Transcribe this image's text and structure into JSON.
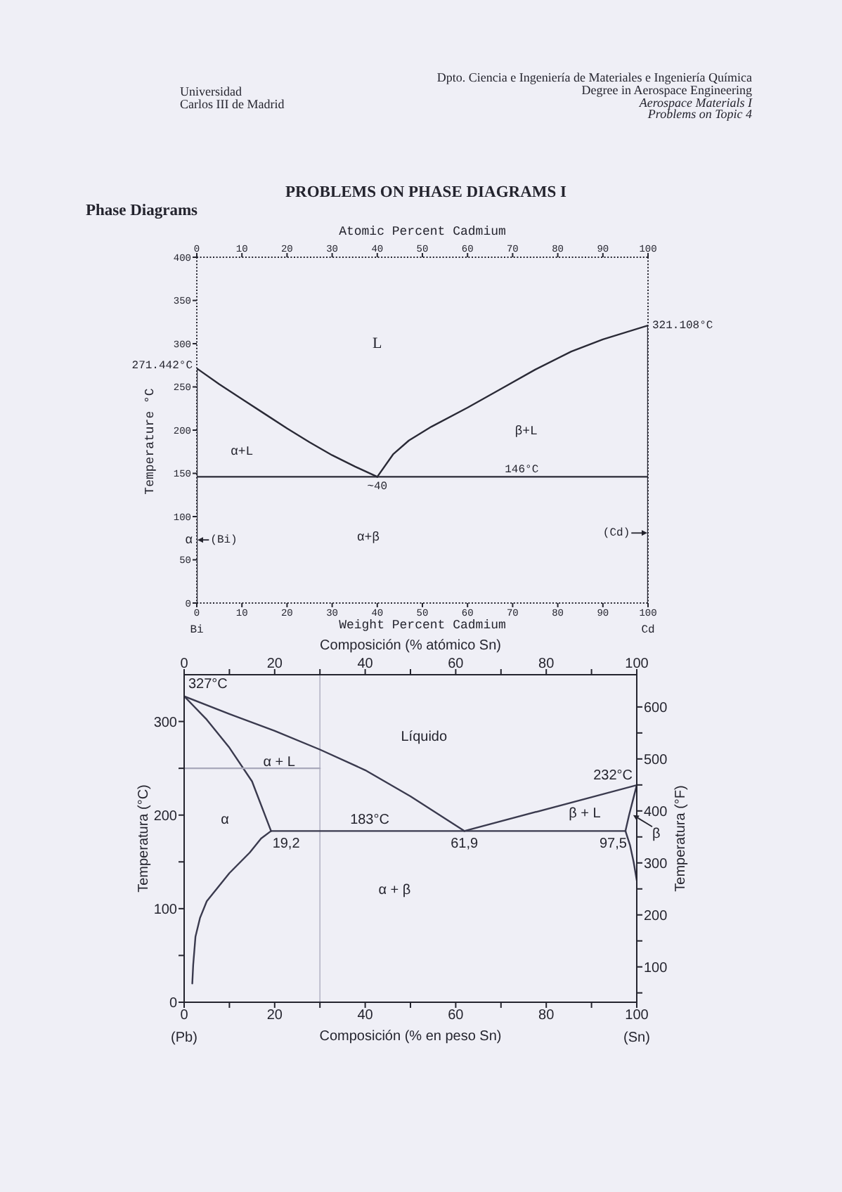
{
  "chart_data": [
    {
      "type": "line",
      "title": "PROBLEMS ON PHASE DIAGRAMS I",
      "subtitle": "Phase Diagrams",
      "xlabel": "Weight Percent Cadmium",
      "x2label": "Atomic Percent Cadmium",
      "ylabel": "Temperature °C",
      "xlim": [
        0,
        100
      ],
      "xticks": [
        0,
        10,
        20,
        30,
        40,
        50,
        60,
        70,
        80,
        90,
        100
      ],
      "x2lim": [
        0,
        100
      ],
      "x2ticks": [
        0,
        10,
        20,
        30,
        40,
        50,
        60,
        70,
        80,
        90,
        100
      ],
      "ylim": [
        0,
        400
      ],
      "yticks": [
        0,
        50,
        100,
        150,
        200,
        250,
        300,
        350,
        400
      ],
      "series": [
        {
          "color": "#2a2a36",
          "x": [
            0,
            0,
            5,
            10,
            15,
            20,
            25,
            30,
            35,
            40
          ],
          "values": [
            0,
            271.442,
            253,
            236,
            219,
            202,
            186,
            171,
            158,
            146
          ]
        },
        {
          "color": "#2a2a36",
          "x": [
            40,
            43.5,
            47,
            52,
            60,
            67.5,
            75,
            83,
            90,
            100,
            100
          ],
          "values": [
            146,
            172,
            188,
            204,
            226,
            248,
            270,
            291,
            305,
            321.108,
            0
          ]
        },
        {
          "color": "#2a2a36",
          "x": [
            0,
            100
          ],
          "values": [
            146,
            146
          ]
        }
      ],
      "annotations": [
        "Universidad",
        "Carlos III de Madrid",
        "Dpto. Ciencia e Ingeniería de Materiales e Ingeniería Química",
        "Degree in Aerospace Engineering",
        "Aerospace Materials I",
        "Problems on Topic 4",
        "L",
        {
          "text": "271.442°C",
          "x": 0,
          "y": 271.442
        },
        {
          "text": "321.108°C",
          "x": 100,
          "y": 321.108
        },
        {
          "text": "146°C",
          "x": 72,
          "y": 146
        },
        {
          "text": "~40",
          "x": 40,
          "y": 146
        },
        "α+L",
        "β+L",
        "α+β",
        "α",
        "(Bi)",
        "(Cd)",
        "Bi",
        "Cd"
      ]
    },
    {
      "type": "line",
      "xlabel": "Composición (% en peso Sn)",
      "x2label": "Composición (% atómico Sn)",
      "ylabel": "Temperatura (°C)",
      "y2label": "Temperatura (°F)",
      "xlim": [
        0,
        100
      ],
      "xticks": [
        0,
        {
          "value": 10,
          "label": null
        },
        20,
        {
          "value": 30,
          "label": null
        },
        40,
        {
          "value": 50,
          "label": null
        },
        60,
        {
          "value": 70,
          "label": null
        },
        80,
        {
          "value": 90,
          "label": null
        },
        100
      ],
      "x2lim": [
        0,
        100
      ],
      "x2ticks": [
        0,
        {
          "value": 10,
          "label": null
        },
        20,
        {
          "value": 30,
          "label": null
        },
        40,
        {
          "value": 50,
          "label": null
        },
        60,
        {
          "value": 70,
          "label": null
        },
        80,
        {
          "value": 90,
          "label": null
        },
        100
      ],
      "ylim": [
        0,
        350
      ],
      "yticks": [
        0,
        {
          "value": 50,
          "label": null
        },
        100,
        {
          "value": 150,
          "label": null
        },
        200,
        {
          "value": 250,
          "label": null
        },
        300
      ],
      "y2lim": [
        32,
        662
      ],
      "y2ticks": [
        {
          "value": 50,
          "label": null
        },
        100,
        {
          "value": 150,
          "label": null
        },
        200,
        {
          "value": 250,
          "label": null
        },
        300,
        {
          "value": 350,
          "label": null
        },
        400,
        {
          "value": 450,
          "label": null
        },
        500,
        {
          "value": 550,
          "label": null
        },
        600
      ],
      "series": [
        {
          "color": "#3a3a4e",
          "x": [
            0,
            10,
            20,
            30,
            40,
            50,
            61.9
          ],
          "values": [
            327,
            308,
            290,
            270,
            248,
            220,
            183
          ]
        },
        {
          "color": "#3a3a4e",
          "x": [
            0,
            5,
            10,
            15,
            19.2
          ],
          "values": [
            327,
            302,
            272,
            236,
            183
          ]
        },
        {
          "color": "#3a3a4e",
          "x": [
            19.2,
            17,
            14.5,
            10,
            7,
            5,
            3.5,
            2.5,
            2,
            1.8
          ],
          "values": [
            183,
            175,
            160,
            138,
            120,
            108,
            90,
            70,
            40,
            20
          ]
        },
        {
          "color": "#3a3a4e",
          "x": [
            19.2,
            97.5
          ],
          "values": [
            183,
            183
          ]
        },
        {
          "color": "#3a3a4e",
          "x": [
            61.9,
            100
          ],
          "values": [
            183,
            232
          ]
        },
        {
          "color": "#3a3a4e",
          "x": [
            97.5,
            98.3,
            99.2,
            100
          ],
          "values": [
            183,
            200,
            217,
            232
          ]
        },
        {
          "color": "#3a3a4e",
          "x": [
            97.5,
            98.5,
            99.3,
            100
          ],
          "values": [
            183,
            168,
            150,
            130
          ]
        },
        {
          "color": "#a9a9bb",
          "x": [
            0,
            30
          ],
          "values": [
            250,
            250
          ]
        }
      ],
      "ref_lines": [
        {
          "axis": "x",
          "value": 30,
          "color": "#b4b4c6"
        }
      ],
      "annotations": [
        {
          "text": "327°C",
          "x": 0,
          "y": 327
        },
        "Líquido",
        "α + L",
        "α",
        {
          "text": "183°C",
          "x": 41,
          "y": 183
        },
        {
          "text": "19,2",
          "x": 19.2,
          "y": 183
        },
        {
          "text": "61,9",
          "x": 61.9,
          "y": 183
        },
        {
          "text": "97,5",
          "x": 97.5,
          "y": 183
        },
        {
          "text": "232°C",
          "x": 100,
          "y": 232
        },
        "β + L",
        "β",
        "α + β",
        "(Pb)",
        "(Sn)"
      ]
    }
  ]
}
